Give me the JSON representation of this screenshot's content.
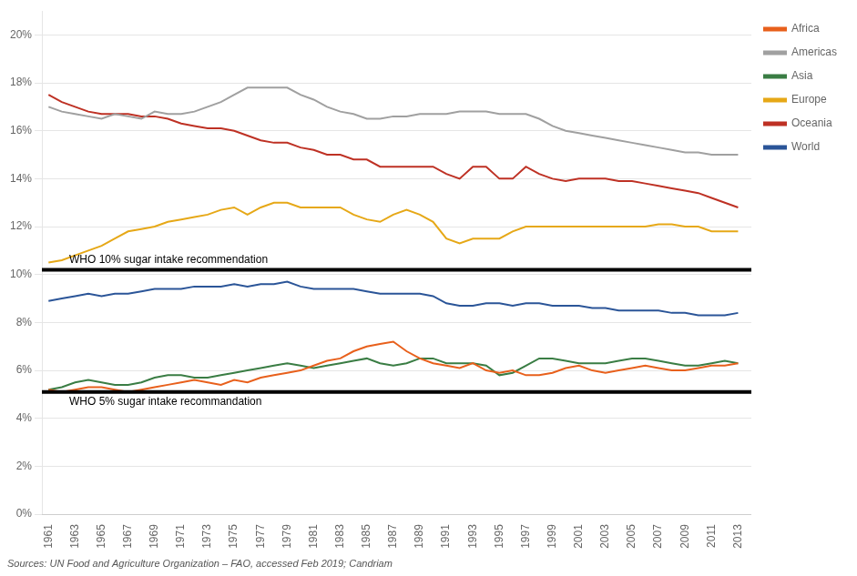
{
  "chart_data": {
    "type": "line",
    "x": [
      1961,
      1962,
      1963,
      1964,
      1965,
      1966,
      1967,
      1968,
      1969,
      1970,
      1971,
      1972,
      1973,
      1974,
      1975,
      1976,
      1977,
      1978,
      1979,
      1980,
      1981,
      1982,
      1983,
      1984,
      1985,
      1986,
      1987,
      1988,
      1989,
      1990,
      1991,
      1992,
      1993,
      1994,
      1995,
      1996,
      1997,
      1998,
      1999,
      2000,
      2001,
      2002,
      2003,
      2004,
      2005,
      2006,
      2007,
      2008,
      2009,
      2010,
      2011,
      2012,
      2013
    ],
    "series": [
      {
        "name": "Africa",
        "color": "#E8601C",
        "values": [
          5.2,
          5.1,
          5.2,
          5.3,
          5.3,
          5.2,
          5.1,
          5.2,
          5.3,
          5.4,
          5.5,
          5.6,
          5.5,
          5.4,
          5.6,
          5.5,
          5.7,
          5.8,
          5.9,
          6.0,
          6.2,
          6.4,
          6.5,
          6.8,
          7.0,
          7.1,
          7.2,
          6.8,
          6.5,
          6.3,
          6.2,
          6.1,
          6.3,
          6.0,
          5.9,
          6.0,
          5.8,
          5.8,
          5.9,
          6.1,
          6.2,
          6.0,
          5.9,
          6.0,
          6.1,
          6.2,
          6.1,
          6.0,
          6.0,
          6.1,
          6.2,
          6.2,
          6.3
        ]
      },
      {
        "name": "Americas",
        "color": "#A0A0A0",
        "values": [
          17.0,
          16.8,
          16.7,
          16.6,
          16.5,
          16.7,
          16.6,
          16.5,
          16.8,
          16.7,
          16.7,
          16.8,
          17.0,
          17.2,
          17.5,
          17.8,
          17.8,
          17.8,
          17.8,
          17.5,
          17.3,
          17.0,
          16.8,
          16.7,
          16.5,
          16.5,
          16.6,
          16.6,
          16.7,
          16.7,
          16.7,
          16.8,
          16.8,
          16.8,
          16.7,
          16.7,
          16.7,
          16.5,
          16.2,
          16.0,
          15.9,
          15.8,
          15.7,
          15.6,
          15.5,
          15.4,
          15.3,
          15.2,
          15.1,
          15.1,
          15.0,
          15.0,
          15.0
        ]
      },
      {
        "name": "Asia",
        "color": "#3A7D44",
        "values": [
          5.2,
          5.3,
          5.5,
          5.6,
          5.5,
          5.4,
          5.4,
          5.5,
          5.7,
          5.8,
          5.8,
          5.7,
          5.7,
          5.8,
          5.9,
          6.0,
          6.1,
          6.2,
          6.3,
          6.2,
          6.1,
          6.2,
          6.3,
          6.4,
          6.5,
          6.3,
          6.2,
          6.3,
          6.5,
          6.5,
          6.3,
          6.3,
          6.3,
          6.2,
          5.8,
          5.9,
          6.2,
          6.5,
          6.5,
          6.4,
          6.3,
          6.3,
          6.3,
          6.4,
          6.5,
          6.5,
          6.4,
          6.3,
          6.2,
          6.2,
          6.3,
          6.4,
          6.3
        ]
      },
      {
        "name": "Europe",
        "color": "#E6A817",
        "values": [
          10.5,
          10.6,
          10.8,
          11.0,
          11.2,
          11.5,
          11.8,
          11.9,
          12.0,
          12.2,
          12.3,
          12.4,
          12.5,
          12.7,
          12.8,
          12.5,
          12.8,
          13.0,
          13.0,
          12.8,
          12.8,
          12.8,
          12.8,
          12.5,
          12.3,
          12.2,
          12.5,
          12.7,
          12.5,
          12.2,
          11.5,
          11.3,
          11.5,
          11.5,
          11.5,
          11.8,
          12.0,
          12.0,
          12.0,
          12.0,
          12.0,
          12.0,
          12.0,
          12.0,
          12.0,
          12.0,
          12.1,
          12.1,
          12.0,
          12.0,
          11.8,
          11.8,
          11.8
        ]
      },
      {
        "name": "Oceania",
        "color": "#BE3124",
        "values": [
          17.5,
          17.2,
          17.0,
          16.8,
          16.7,
          16.7,
          16.7,
          16.6,
          16.6,
          16.5,
          16.3,
          16.2,
          16.1,
          16.1,
          16.0,
          15.8,
          15.6,
          15.5,
          15.5,
          15.3,
          15.2,
          15.0,
          15.0,
          14.8,
          14.8,
          14.5,
          14.5,
          14.5,
          14.5,
          14.5,
          14.2,
          14.0,
          14.5,
          14.5,
          14.0,
          14.0,
          14.5,
          14.2,
          14.0,
          13.9,
          14.0,
          14.0,
          14.0,
          13.9,
          13.9,
          13.8,
          13.7,
          13.6,
          13.5,
          13.4,
          13.2,
          13.0,
          12.8
        ]
      },
      {
        "name": "World",
        "color": "#2B5598",
        "values": [
          8.9,
          9.0,
          9.1,
          9.2,
          9.1,
          9.2,
          9.2,
          9.3,
          9.4,
          9.4,
          9.4,
          9.5,
          9.5,
          9.5,
          9.6,
          9.5,
          9.6,
          9.6,
          9.7,
          9.5,
          9.4,
          9.4,
          9.4,
          9.4,
          9.3,
          9.2,
          9.2,
          9.2,
          9.2,
          9.1,
          8.8,
          8.7,
          8.7,
          8.8,
          8.8,
          8.7,
          8.8,
          8.8,
          8.7,
          8.7,
          8.7,
          8.6,
          8.6,
          8.5,
          8.5,
          8.5,
          8.5,
          8.4,
          8.4,
          8.3,
          8.3,
          8.3,
          8.4
        ]
      }
    ],
    "reference_lines": [
      {
        "value": 10.2,
        "label": "WHO 10% sugar intake recommendation",
        "color": "#000000"
      },
      {
        "value": 5.1,
        "label": "WHO 5% sugar intake recommandation",
        "color": "#000000"
      }
    ],
    "xlim": [
      1960.5,
      2014.0
    ],
    "xticks": [
      1961,
      1963,
      1965,
      1967,
      1969,
      1971,
      1973,
      1975,
      1977,
      1979,
      1981,
      1983,
      1985,
      1987,
      1989,
      1991,
      1993,
      1995,
      1997,
      1999,
      2001,
      2003,
      2005,
      2007,
      2009,
      2011,
      2013
    ],
    "ylim": [
      0,
      21
    ],
    "yticks": [
      {
        "value": 0,
        "label": "0%"
      },
      {
        "value": 2,
        "label": "2%"
      },
      {
        "value": 4,
        "label": "4%"
      },
      {
        "value": 6,
        "label": "6%"
      },
      {
        "value": 8,
        "label": "8%"
      },
      {
        "value": 10,
        "label": "10%"
      },
      {
        "value": 12,
        "label": "12%"
      },
      {
        "value": 14,
        "label": "14%"
      },
      {
        "value": 16,
        "label": "16%"
      },
      {
        "value": 18,
        "label": "18%"
      },
      {
        "value": 20,
        "label": "20%"
      }
    ],
    "grid": "y",
    "legend": "right",
    "source": "Sources: UN Food and Agriculture Organization – FAO, accessed Feb 2019; Candriam"
  }
}
